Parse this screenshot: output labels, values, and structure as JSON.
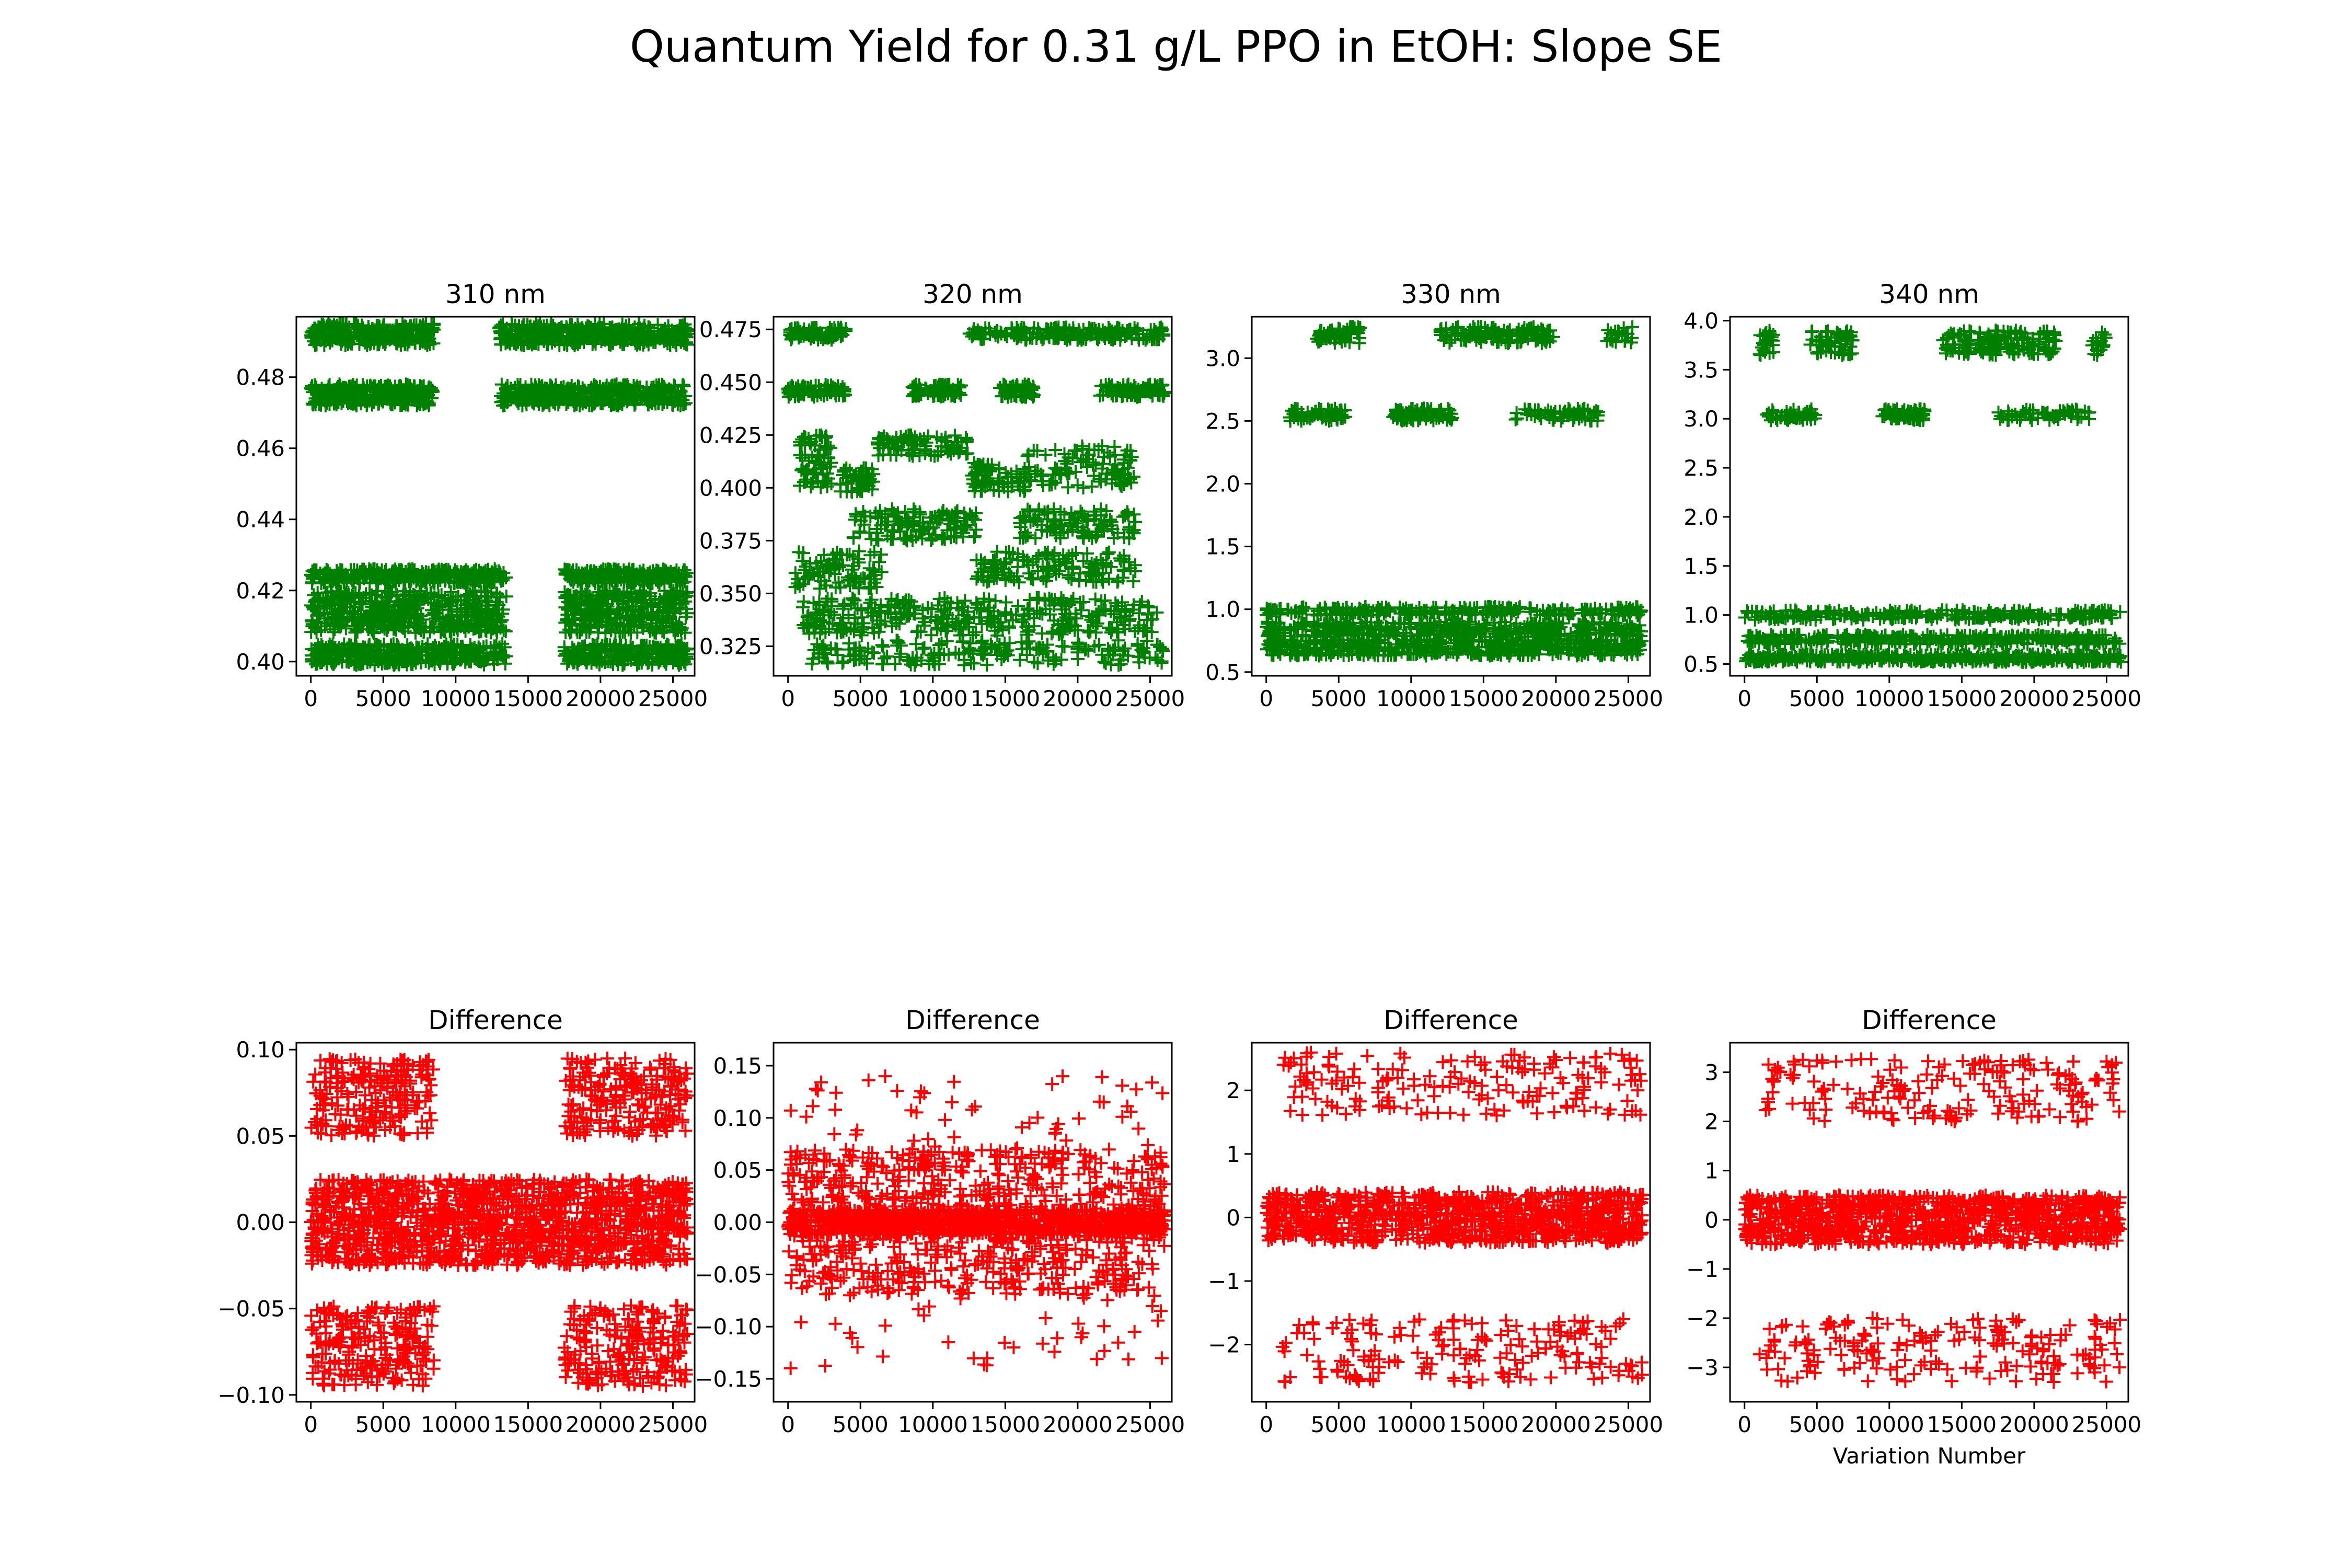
{
  "figure": {
    "suptitle": "Quantum Yield for 0.31 g/L PPO in EtOH: Slope SE",
    "xlabel": "Variation Number"
  },
  "colors": {
    "top_series": "#008000",
    "bottom_series": "#ff0000"
  },
  "marker": "+",
  "chart_data": [
    {
      "type": "scatter",
      "title": "310 nm",
      "xlim": [
        -1000,
        26500
      ],
      "ylim": [
        0.396,
        0.497
      ],
      "xticks": [
        0,
        5000,
        10000,
        15000,
        20000,
        25000
      ],
      "xtick_labels": [
        "0",
        "5000",
        "10000",
        "15000",
        "20000",
        "25000"
      ],
      "yticks": [
        0.4,
        0.42,
        0.44,
        0.46,
        0.48
      ],
      "ytick_labels": [
        "0.40",
        "0.42",
        "0.44",
        "0.46",
        "0.48"
      ],
      "clusters": [
        {
          "x": [
            0,
            8500
          ],
          "y": [
            0.489,
            0.495
          ],
          "n": 300
        },
        {
          "x": [
            13000,
            26000
          ],
          "y": [
            0.489,
            0.495
          ],
          "n": 420
        },
        {
          "x": [
            0,
            8500
          ],
          "y": [
            0.472,
            0.478
          ],
          "n": 300
        },
        {
          "x": [
            13000,
            26000
          ],
          "y": [
            0.472,
            0.478
          ],
          "n": 420
        },
        {
          "x": [
            0,
            13500
          ],
          "y": [
            0.422,
            0.426
          ],
          "n": 350
        },
        {
          "x": [
            17500,
            26000
          ],
          "y": [
            0.422,
            0.426
          ],
          "n": 230
        },
        {
          "x": [
            0,
            13500
          ],
          "y": [
            0.408,
            0.42
          ],
          "n": 500
        },
        {
          "x": [
            17500,
            26000
          ],
          "y": [
            0.408,
            0.42
          ],
          "n": 330
        },
        {
          "x": [
            0,
            13500
          ],
          "y": [
            0.399,
            0.405
          ],
          "n": 380
        },
        {
          "x": [
            17500,
            26000
          ],
          "y": [
            0.399,
            0.405
          ],
          "n": 250
        }
      ]
    },
    {
      "type": "scatter",
      "title": "320 nm",
      "xlim": [
        -1000,
        26500
      ],
      "ylim": [
        0.311,
        0.481
      ],
      "xticks": [
        0,
        5000,
        10000,
        15000,
        20000,
        25000
      ],
      "xtick_labels": [
        "0",
        "5000",
        "10000",
        "15000",
        "20000",
        "25000"
      ],
      "yticks": [
        0.325,
        0.35,
        0.375,
        0.4,
        0.425,
        0.45,
        0.475
      ],
      "ytick_labels": [
        "0.325",
        "0.350",
        "0.375",
        "0.400",
        "0.425",
        "0.450",
        "0.475"
      ],
      "clusters": [
        {
          "x": [
            0,
            4000
          ],
          "y": [
            0.47,
            0.476
          ],
          "n": 90
        },
        {
          "x": [
            12500,
            26000
          ],
          "y": [
            0.47,
            0.476
          ],
          "n": 200
        },
        {
          "x": [
            0,
            4000
          ],
          "y": [
            0.443,
            0.449
          ],
          "n": 80
        },
        {
          "x": [
            8500,
            12000
          ],
          "y": [
            0.443,
            0.449
          ],
          "n": 80
        },
        {
          "x": [
            14500,
            17000
          ],
          "y": [
            0.443,
            0.449
          ],
          "n": 60
        },
        {
          "x": [
            21500,
            26000
          ],
          "y": [
            0.443,
            0.449
          ],
          "n": 90
        },
        {
          "x": [
            800,
            3000
          ],
          "y": [
            0.4,
            0.425
          ],
          "n": 70
        },
        {
          "x": [
            3500,
            6000
          ],
          "y": [
            0.398,
            0.41
          ],
          "n": 50
        },
        {
          "x": [
            6000,
            12500
          ],
          "y": [
            0.415,
            0.425
          ],
          "n": 90
        },
        {
          "x": [
            12500,
            16500
          ],
          "y": [
            0.398,
            0.412
          ],
          "n": 70
        },
        {
          "x": [
            16500,
            24000
          ],
          "y": [
            0.4,
            0.42
          ],
          "n": 100
        },
        {
          "x": [
            4500,
            13000
          ],
          "y": [
            0.375,
            0.39
          ],
          "n": 130
        },
        {
          "x": [
            16000,
            24000
          ],
          "y": [
            0.376,
            0.39
          ],
          "n": 110
        },
        {
          "x": [
            500,
            6500
          ],
          "y": [
            0.352,
            0.37
          ],
          "n": 90
        },
        {
          "x": [
            13000,
            24000
          ],
          "y": [
            0.355,
            0.37
          ],
          "n": 140
        },
        {
          "x": [
            1000,
            26000
          ],
          "y": [
            0.33,
            0.348
          ],
          "n": 350
        },
        {
          "x": [
            1000,
            26000
          ],
          "y": [
            0.316,
            0.328
          ],
          "n": 200
        }
      ]
    },
    {
      "type": "scatter",
      "title": "330 nm",
      "xlim": [
        -1000,
        26500
      ],
      "ylim": [
        0.47,
        3.33
      ],
      "xticks": [
        0,
        5000,
        10000,
        15000,
        20000,
        25000
      ],
      "xtick_labels": [
        "0",
        "5000",
        "10000",
        "15000",
        "20000",
        "25000"
      ],
      "yticks": [
        0.5,
        1.0,
        1.5,
        2.0,
        2.5,
        3.0
      ],
      "ytick_labels": [
        "0.5",
        "1.0",
        "1.5",
        "2.0",
        "2.5",
        "3.0"
      ],
      "clusters": [
        {
          "x": [
            3500,
            6500
          ],
          "y": [
            3.12,
            3.25
          ],
          "n": 60
        },
        {
          "x": [
            12000,
            20000
          ],
          "y": [
            3.12,
            3.25
          ],
          "n": 130
        },
        {
          "x": [
            23500,
            25500
          ],
          "y": [
            3.12,
            3.25
          ],
          "n": 20
        },
        {
          "x": [
            1500,
            5500
          ],
          "y": [
            2.5,
            2.6
          ],
          "n": 60
        },
        {
          "x": [
            8500,
            13000
          ],
          "y": [
            2.5,
            2.6
          ],
          "n": 90
        },
        {
          "x": [
            17000,
            23000
          ],
          "y": [
            2.5,
            2.6
          ],
          "n": 60
        },
        {
          "x": [
            0,
            26000
          ],
          "y": [
            0.95,
            1.02
          ],
          "n": 260
        },
        {
          "x": [
            0,
            26000
          ],
          "y": [
            0.78,
            0.9
          ],
          "n": 380
        },
        {
          "x": [
            0,
            26000
          ],
          "y": [
            0.63,
            0.76
          ],
          "n": 520
        }
      ]
    },
    {
      "type": "scatter",
      "title": "340 nm",
      "xlim": [
        -1000,
        26500
      ],
      "ylim": [
        0.38,
        4.04
      ],
      "xticks": [
        0,
        5000,
        10000,
        15000,
        20000,
        25000
      ],
      "xtick_labels": [
        "0",
        "5000",
        "10000",
        "15000",
        "20000",
        "25000"
      ],
      "yticks": [
        0.5,
        1.0,
        1.5,
        2.0,
        2.5,
        3.0,
        3.5,
        4.0
      ],
      "ytick_labels": [
        "0.5",
        "1.0",
        "1.5",
        "2.0",
        "2.5",
        "3.0",
        "3.5",
        "4.0"
      ],
      "clusters": [
        {
          "x": [
            1000,
            2000
          ],
          "y": [
            3.65,
            3.9
          ],
          "n": 25
        },
        {
          "x": [
            4500,
            7500
          ],
          "y": [
            3.65,
            3.9
          ],
          "n": 60
        },
        {
          "x": [
            13500,
            21500
          ],
          "y": [
            3.65,
            3.9
          ],
          "n": 150
        },
        {
          "x": [
            24000,
            25000
          ],
          "y": [
            3.65,
            3.9
          ],
          "n": 20
        },
        {
          "x": [
            1500,
            5000
          ],
          "y": [
            2.98,
            3.1
          ],
          "n": 50
        },
        {
          "x": [
            9500,
            12500
          ],
          "y": [
            2.98,
            3.1
          ],
          "n": 70
        },
        {
          "x": [
            17500,
            24000
          ],
          "y": [
            2.98,
            3.1
          ],
          "n": 60
        },
        {
          "x": [
            0,
            26000
          ],
          "y": [
            0.95,
            1.05
          ],
          "n": 260
        },
        {
          "x": [
            0,
            26000
          ],
          "y": [
            0.7,
            0.8
          ],
          "n": 320
        },
        {
          "x": [
            0,
            26000
          ],
          "y": [
            0.52,
            0.6
          ],
          "n": 460
        }
      ]
    },
    {
      "type": "scatter",
      "title": "Difference",
      "xlim": [
        -1000,
        26500
      ],
      "ylim": [
        -0.104,
        0.104
      ],
      "xticks": [
        0,
        5000,
        10000,
        15000,
        20000,
        25000
      ],
      "xtick_labels": [
        "0",
        "5000",
        "10000",
        "15000",
        "20000",
        "25000"
      ],
      "yticks": [
        -0.1,
        -0.05,
        0.0,
        0.05,
        0.1
      ],
      "ytick_labels": [
        "−0.10",
        "−0.05",
        "0.00",
        "0.05",
        "0.10"
      ],
      "clusters": [
        {
          "x": [
            0,
            26000
          ],
          "y": [
            -0.025,
            0.025
          ],
          "n": 1400
        },
        {
          "x": [
            0,
            8500
          ],
          "y": [
            0.05,
            0.095
          ],
          "n": 220
        },
        {
          "x": [
            17500,
            26000
          ],
          "y": [
            0.05,
            0.095
          ],
          "n": 220
        },
        {
          "x": [
            0,
            8500
          ],
          "y": [
            -0.095,
            -0.048
          ],
          "n": 220
        },
        {
          "x": [
            17500,
            26000
          ],
          "y": [
            -0.095,
            -0.048
          ],
          "n": 220
        }
      ]
    },
    {
      "type": "scatter",
      "title": "Difference",
      "xlim": [
        -1000,
        26500
      ],
      "ylim": [
        -0.172,
        0.172
      ],
      "xticks": [
        0,
        5000,
        10000,
        15000,
        20000,
        25000
      ],
      "xtick_labels": [
        "0",
        "5000",
        "10000",
        "15000",
        "20000",
        "25000"
      ],
      "yticks": [
        -0.15,
        -0.1,
        -0.05,
        0.0,
        0.05,
        0.1,
        0.15
      ],
      "ytick_labels": [
        "−0.15",
        "−0.10",
        "−0.05",
        "0.00",
        "0.05",
        "0.10",
        "0.15"
      ],
      "clusters": [
        {
          "x": [
            0,
            26000
          ],
          "y": [
            -0.012,
            0.012
          ],
          "n": 900
        },
        {
          "x": [
            0,
            26000
          ],
          "y": [
            -0.07,
            0.07
          ],
          "n": 700
        },
        {
          "x": [
            0,
            26000
          ],
          "y": [
            -0.14,
            0.14
          ],
          "n": 200
        }
      ]
    },
    {
      "type": "scatter",
      "title": "Difference",
      "xlim": [
        -1000,
        26500
      ],
      "ylim": [
        -2.9,
        2.75
      ],
      "xticks": [
        0,
        5000,
        10000,
        15000,
        20000,
        25000
      ],
      "xtick_labels": [
        "0",
        "5000",
        "10000",
        "15000",
        "20000",
        "25000"
      ],
      "yticks": [
        -2,
        -1,
        0,
        1,
        2
      ],
      "ytick_labels": [
        "−2",
        "−1",
        "0",
        "1",
        "2"
      ],
      "clusters": [
        {
          "x": [
            0,
            26000
          ],
          "y": [
            -0.4,
            0.4
          ],
          "n": 1000
        },
        {
          "x": [
            1000,
            26000
          ],
          "y": [
            1.6,
            2.6
          ],
          "n": 180
        },
        {
          "x": [
            1000,
            26000
          ],
          "y": [
            -2.6,
            -1.6
          ],
          "n": 180
        }
      ]
    },
    {
      "type": "scatter",
      "title": "Difference",
      "xlim": [
        -1000,
        26500
      ],
      "ylim": [
        -3.7,
        3.6
      ],
      "xticks": [
        0,
        5000,
        10000,
        15000,
        20000,
        25000
      ],
      "xtick_labels": [
        "0",
        "5000",
        "10000",
        "15000",
        "20000",
        "25000"
      ],
      "yticks": [
        -3,
        -2,
        -1,
        0,
        1,
        2,
        3
      ],
      "ytick_labels": [
        "−3",
        "−2",
        "−1",
        "0",
        "1",
        "2",
        "3"
      ],
      "xlabel": "Variation Number",
      "clusters": [
        {
          "x": [
            0,
            26000
          ],
          "y": [
            -0.5,
            0.5
          ],
          "n": 1000
        },
        {
          "x": [
            1000,
            26000
          ],
          "y": [
            2.0,
            3.3
          ],
          "n": 190
        },
        {
          "x": [
            1000,
            26000
          ],
          "y": [
            -3.3,
            -2.0
          ],
          "n": 190
        }
      ]
    }
  ]
}
